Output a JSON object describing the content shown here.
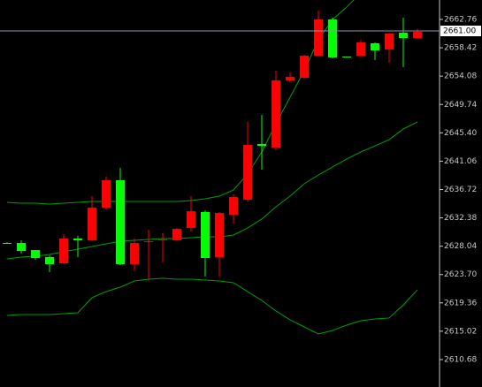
{
  "chart_data": {
    "type": "candlestick",
    "ylim": [
      2606.48,
      2665.74
    ],
    "yticks": [
      2662.76,
      2658.42,
      2654.08,
      2649.74,
      {
        "value": 2645.4,
        "label": "2645.40"
      },
      2641.06,
      2636.72,
      2632.38,
      2628.04,
      {
        "value": 2623.7,
        "label": "2623.70"
      },
      2619.36,
      2615.02,
      2610.68
    ],
    "up_color": "#00ff00",
    "down_color": "#ff0000",
    "open": [
      2628.53,
      2627.31,
      2626.23,
      2625.29,
      2629.21,
      2628.94,
      2633.95,
      2638.14,
      2625.29,
      2628.53,
      2628.8,
      2629.07,
      2630.7,
      2633.4,
      2626.23,
      2633.13,
      2635.57,
      2643.55,
      2643.41,
      2653.43,
      2653.97,
      2657.21,
      2662.76,
      2656.94,
      2657.08,
      2659.24,
      2658.03,
      2660.6,
      2659.92,
      2660.87
    ],
    "high": [
      2628.67,
      2628.94,
      2627.45,
      2626.64,
      2629.89,
      2629.62,
      2635.7,
      2638.68,
      2640.03,
      2629.21,
      2630.56,
      2630.02,
      2630.83,
      2635.7,
      2633.54,
      2633.27,
      2635.97,
      2647.07,
      2648.15,
      2654.91,
      2654.64,
      2657.35,
      2664.11,
      2663.03,
      2657.08,
      2659.65,
      2659.24,
      2660.73,
      2663.03,
      2661.27
    ],
    "low": [
      2628.53,
      2626.91,
      2625.96,
      2624.07,
      2625.29,
      2626.37,
      2628.8,
      2633.67,
      2625.15,
      2624.2,
      2622.72,
      2625.56,
      2628.8,
      2630.29,
      2623.4,
      2623.4,
      2631.51,
      2634.89,
      2639.76,
      2642.74,
      2653.16,
      2653.7,
      2657.08,
      2656.81,
      2657.08,
      2656.94,
      2656.54,
      2656.13,
      2655.46,
      2659.78
    ],
    "close": [
      2628.53,
      2628.53,
      2627.45,
      2626.37,
      2625.42,
      2629.21,
      2628.94,
      2633.95,
      2638.14,
      2625.29,
      2628.67,
      2628.94,
      2628.94,
      2630.83,
      2633.27,
      2626.37,
      2632.86,
      2635.16,
      2643.69,
      2643.14,
      2653.43,
      2653.83,
      2657.21,
      2662.76,
      2657.08,
      2657.21,
      2659.11,
      2658.16,
      2660.73,
      2659.92
    ],
    "series": [
      {
        "color": "#00a000",
        "values": [
          2634.76,
          2634.62,
          2634.62,
          2634.49,
          2634.62,
          2634.76,
          2634.89,
          2634.89,
          2634.89,
          2634.89,
          2634.89,
          2634.89,
          2634.89,
          2635.03,
          2635.3,
          2635.7,
          2636.65,
          2639.09,
          2642.47,
          2646.8,
          2650.86,
          2654.91,
          2659.65,
          2662.76,
          2664.65,
          2666.82,
          null,
          null,
          null,
          null
        ]
      },
      {
        "color": "#00a000",
        "values": [
          2626.1,
          2626.37,
          2626.5,
          2626.78,
          2627.18,
          2627.59,
          2627.99,
          2628.4,
          2628.8,
          2628.94,
          2629.07,
          2629.21,
          2629.21,
          2629.35,
          2629.48,
          2629.48,
          2629.75,
          2630.83,
          2632.19,
          2634.08,
          2635.7,
          2637.6,
          2638.95,
          2640.17,
          2641.39,
          2642.47,
          2643.41,
          2644.36,
          2645.99,
          2647.07
        ]
      },
      {
        "color": "#00a000",
        "values": [
          2617.44,
          2617.58,
          2617.58,
          2617.58,
          2617.71,
          2617.85,
          2620.15,
          2621.09,
          2621.77,
          2622.72,
          2622.99,
          2623.12,
          2622.99,
          2622.99,
          2622.85,
          2622.72,
          2622.45,
          2621.09,
          2619.74,
          2618.12,
          2616.76,
          2615.68,
          2614.6,
          2615.14,
          2615.95,
          2616.63,
          2616.9,
          2617.04,
          2619.06,
          2621.36
        ]
      }
    ],
    "price_line": {
      "value": 2661,
      "label": "2661.00",
      "color": "#8c96a8"
    }
  }
}
